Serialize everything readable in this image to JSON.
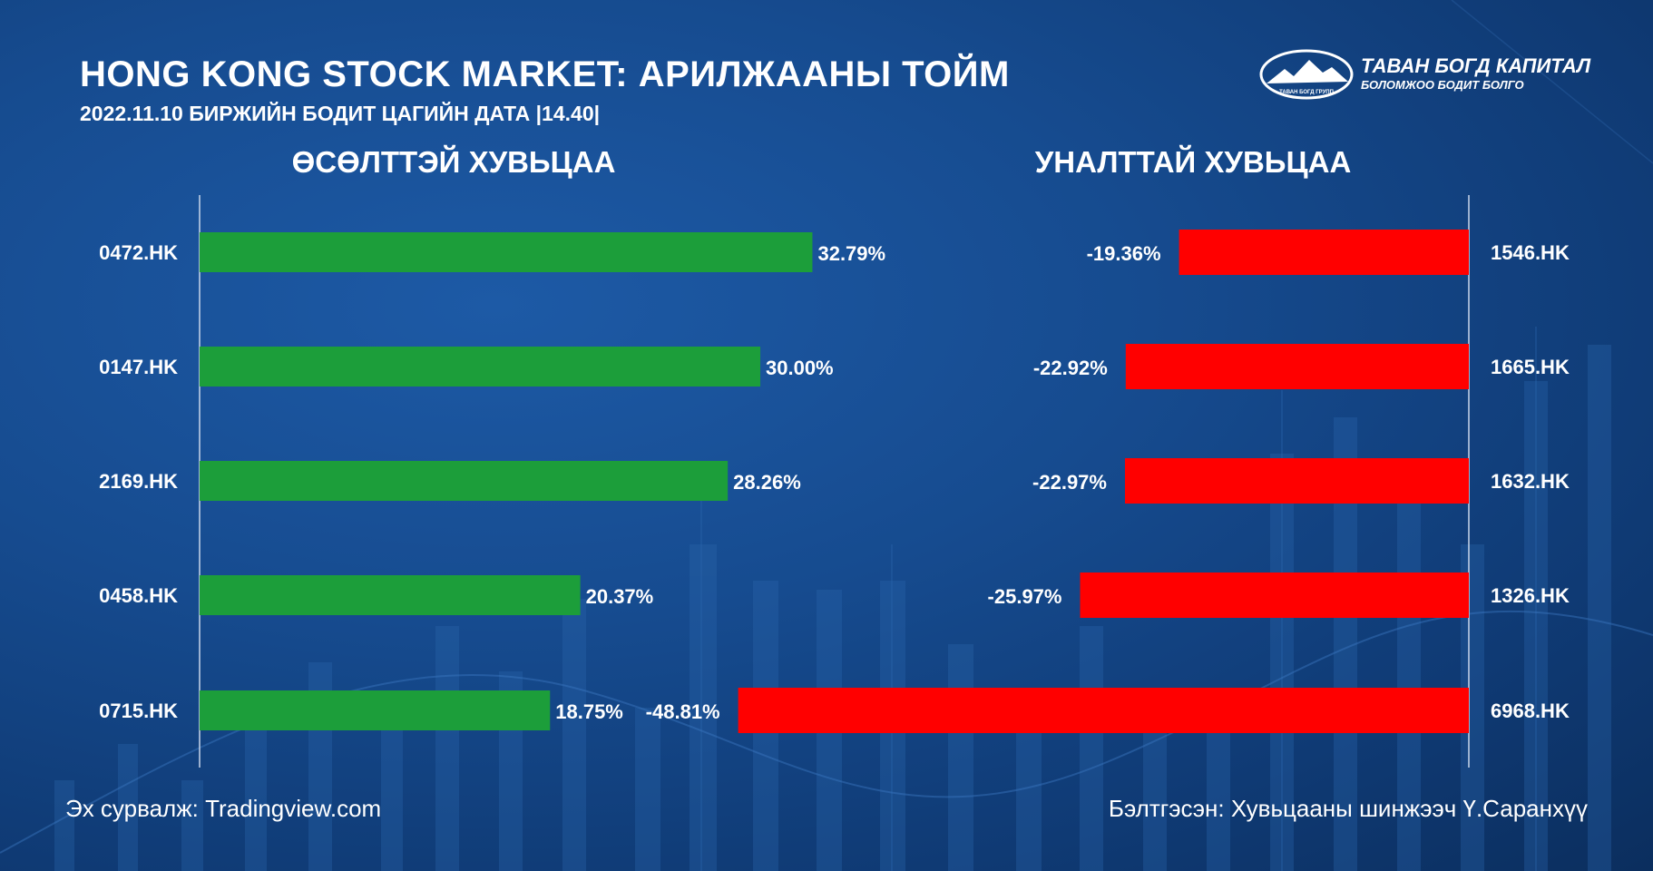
{
  "header": {
    "title": "HONG KONG STOCK MARKET: АРИЛЖААНЫ ТОЙМ",
    "subtitle": "2022.11.10  БИРЖИЙН БОДИТ ЦАГИЙН ДАТА |14.40|"
  },
  "logo": {
    "name": "ТАВАН БОГД КАПИТАЛ",
    "tagline": "БОЛОМЖОО БОДИТ БОЛГО",
    "emblem_text": "ТАВАН БОГД ГРУПП"
  },
  "colors": {
    "background": "#164b8f",
    "gain_bar": "#1c9e3a",
    "loss_bar": "#ff0000",
    "text": "#ffffff",
    "axis_line": "#c9d6ea"
  },
  "chart_data": [
    {
      "type": "bar",
      "orientation": "horizontal",
      "title": "ӨСӨЛТТЭЙ ХУВЬЦАА",
      "categories": [
        "0472.HK",
        "0147.HK",
        "2169.HK",
        "0458.HK",
        "0715.HK"
      ],
      "values": [
        32.79,
        30.0,
        28.26,
        20.37,
        18.75
      ],
      "value_labels": [
        "32.79%",
        "30.00%",
        "28.26%",
        "20.37%",
        "18.75%"
      ],
      "unit": "%",
      "xlim": [
        0,
        50
      ],
      "grid": false
    },
    {
      "type": "bar",
      "orientation": "horizontal",
      "title": "УНАЛТТАЙ ХУВЬЦАА",
      "categories": [
        "1546.HK",
        "1665.HK",
        "1632.HK",
        "1326.HK",
        "6968.HK"
      ],
      "values": [
        -19.36,
        -22.92,
        -22.97,
        -25.97,
        -48.81
      ],
      "value_labels": [
        "-19.36%",
        "-22.92%",
        "-22.97%",
        "-25.97%",
        "-48.81%"
      ],
      "unit": "%",
      "xlim": [
        -50,
        0
      ],
      "grid": false
    }
  ],
  "footer": {
    "source": "Эх сурвалж: Tradingview.com",
    "author": "Бэлтгэсэн: Хувьцааны шинжээч Ү.Саранхүү"
  }
}
